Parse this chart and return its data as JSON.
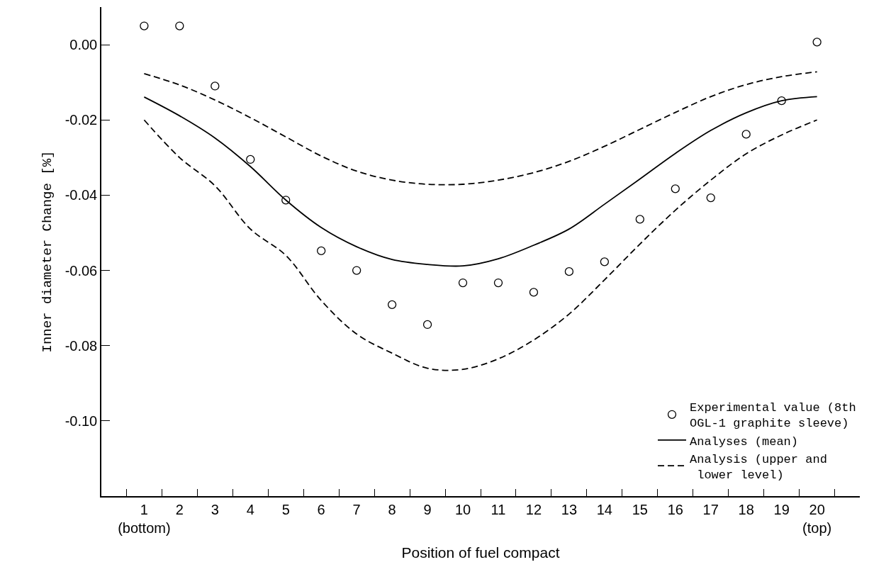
{
  "chart_data": {
    "type": "line",
    "xlabel": "Position of fuel compact",
    "ylabel": "Inner diameter Change [%]",
    "categories": [
      "1\n(bottom)",
      "2",
      "3",
      "4",
      "5",
      "6",
      "7",
      "8",
      "9",
      "10",
      "11",
      "12",
      "13",
      "14",
      "15",
      "16",
      "17",
      "18",
      "19",
      "20\n(top)"
    ],
    "ylim": [
      -0.12,
      0.01
    ],
    "yticks": [
      {
        "value": 0,
        "label": "0.00"
      },
      {
        "value": -0.02,
        "label": "-0.02"
      },
      {
        "value": -0.04,
        "label": "-0.04"
      },
      {
        "value": -0.06,
        "label": "-0.06"
      },
      {
        "value": -0.08,
        "label": "-0.08"
      },
      {
        "value": -0.1,
        "label": "-0.10"
      }
    ],
    "grid": false,
    "legend": "bottom right",
    "series": [
      {
        "name": "Experimental value (8th\nOGL-1 graphite sleeve)",
        "type": "scatter",
        "marker": "circle",
        "color": "#000000",
        "values": [
          0.005,
          0.005,
          -0.011,
          -0.0305,
          -0.0413,
          -0.0548,
          -0.06,
          -0.0691,
          -0.0744,
          -0.0633,
          -0.0633,
          -0.0658,
          -0.0603,
          -0.0577,
          -0.0464,
          -0.0383,
          -0.0407,
          -0.0238,
          -0.0149,
          0.0007
        ]
      },
      {
        "name": "Analyses (mean)",
        "line_style": "solid",
        "color": "#000000",
        "values": [
          -0.0139,
          -0.0189,
          -0.0248,
          -0.0324,
          -0.0413,
          -0.0486,
          -0.0537,
          -0.0571,
          -0.0584,
          -0.0588,
          -0.0569,
          -0.0533,
          -0.049,
          -0.0424,
          -0.0357,
          -0.0289,
          -0.0228,
          -0.0181,
          -0.0149,
          -0.0138
        ]
      },
      {
        "name": "Analysis (upper and\n lower level)",
        "line_style": "dashed",
        "color": "#000000",
        "values": [
          -0.0077,
          -0.0107,
          -0.0147,
          -0.0194,
          -0.0245,
          -0.0296,
          -0.0336,
          -0.036,
          -0.0371,
          -0.0371,
          -0.036,
          -0.034,
          -0.031,
          -0.027,
          -0.0225,
          -0.018,
          -0.0138,
          -0.0106,
          -0.0085,
          -0.0072
        ]
      },
      {
        "line_style": "dashed",
        "color": "#000000",
        "values": [
          -0.02,
          -0.03,
          -0.0375,
          -0.049,
          -0.056,
          -0.068,
          -0.0769,
          -0.082,
          -0.086,
          -0.0863,
          -0.0835,
          -0.0785,
          -0.0716,
          -0.0625,
          -0.053,
          -0.044,
          -0.036,
          -0.029,
          -0.024,
          -0.02
        ]
      }
    ]
  }
}
